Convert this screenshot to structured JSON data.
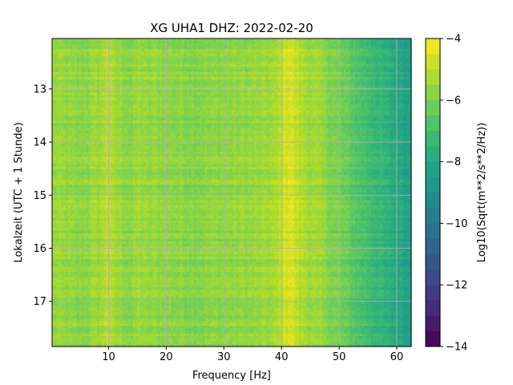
{
  "chart_data": {
    "type": "heatmap",
    "title": "XG UHA1  DHZ: 2022-02-20",
    "xlabel": "Frequency [Hz]",
    "ylabel": "Lokalzeit (UTC + 1 Stunde)",
    "xlim": [
      0.2,
      62.5
    ],
    "ylim": [
      17.85,
      12.05
    ],
    "x_ticks": [
      10,
      20,
      30,
      40,
      50,
      60
    ],
    "y_ticks": [
      13,
      14,
      15,
      16,
      17
    ],
    "grid": true,
    "colormap": "viridis",
    "colorbar": {
      "label": "Log10(Sqrt(m**2/s**2/Hz))",
      "range": [
        -14,
        -4
      ],
      "ticks": [
        -4,
        -6,
        -8,
        -10,
        -12,
        -14
      ],
      "levels": 20
    },
    "spectral_profile": {
      "frequency_hz": [
        0.2,
        5,
        9,
        9.8,
        10.6,
        14,
        15.4,
        16.5,
        18,
        20,
        25,
        30,
        36,
        39,
        40.6,
        41.6,
        42.6,
        44,
        46,
        48,
        50,
        52,
        54,
        56,
        58,
        60,
        62.5
      ],
      "log10_amplitude": [
        -5.5,
        -5.8,
        -5.4,
        -4.9,
        -5.4,
        -5.8,
        -5.4,
        -5.7,
        -5.6,
        -5.7,
        -5.8,
        -5.7,
        -5.6,
        -5.4,
        -4.7,
        -4.5,
        -5.0,
        -5.3,
        -5.5,
        -5.8,
        -6.1,
        -6.5,
        -6.9,
        -7.2,
        -7.6,
        -7.9,
        -8.3
      ]
    }
  }
}
